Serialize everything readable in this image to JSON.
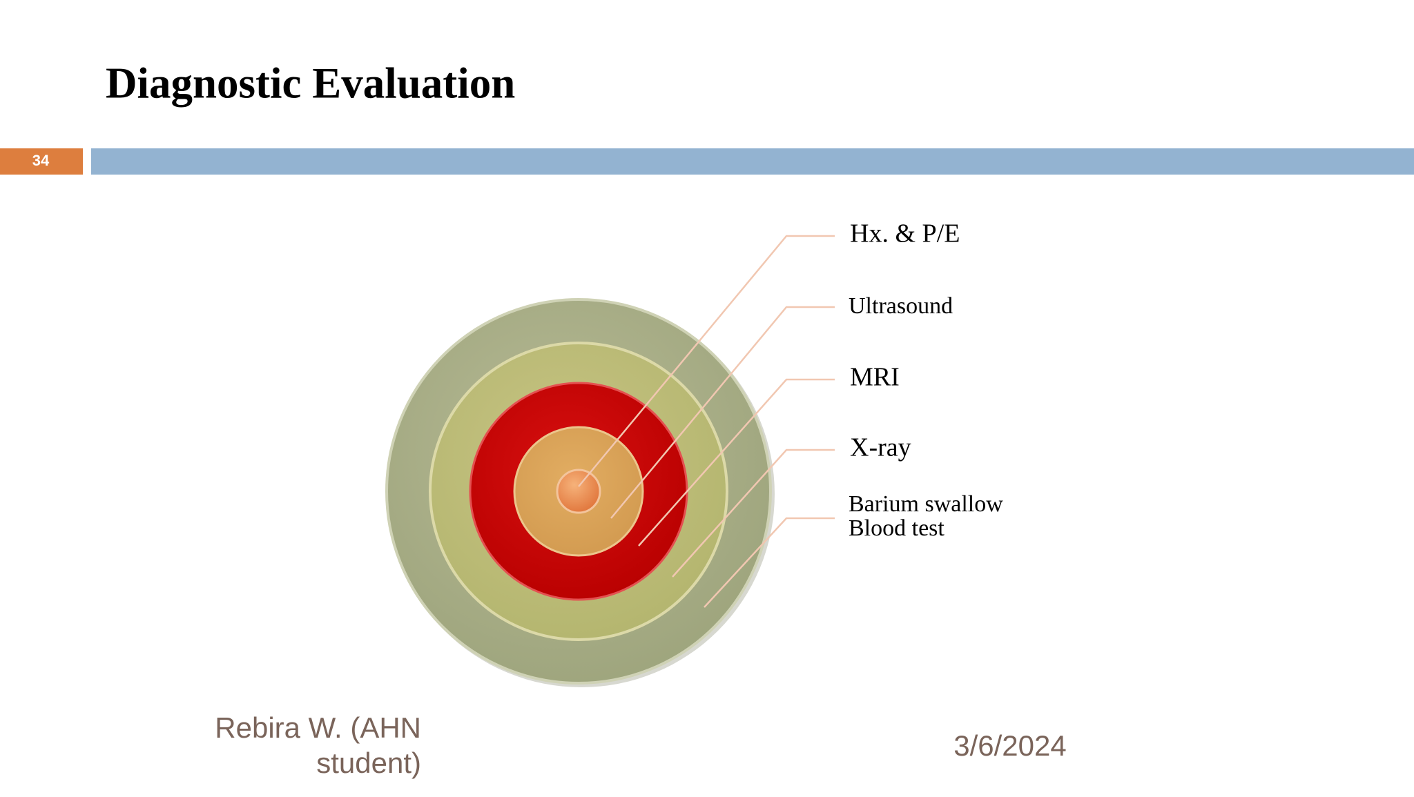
{
  "header": {
    "title": "Diagnostic Evaluation",
    "slide_number": "34"
  },
  "diagram": {
    "items": [
      "Hx. & P/E",
      "Ultrasound",
      "MRI",
      "X-ray",
      [
        "Barium swallow",
        "Blood test"
      ]
    ]
  },
  "footer": {
    "author": [
      "Rebira W. (AHN",
      "student)"
    ],
    "date": "3/6/2024"
  }
}
